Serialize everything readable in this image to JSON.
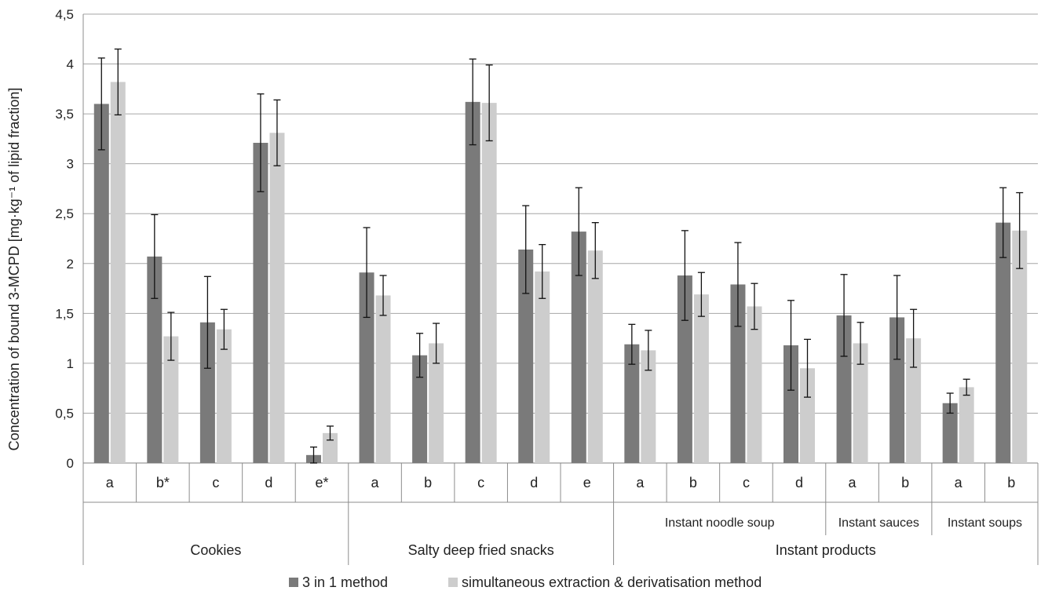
{
  "chart_data": {
    "type": "bar",
    "ylabel": "Concentration of bound 3-MCPD [mg·kg⁻¹ of lipid fraction]",
    "ylim": [
      0,
      4.5
    ],
    "yticks": [
      "0",
      "0,5",
      "1",
      "1,5",
      "2",
      "2,5",
      "3",
      "3,5",
      "4",
      "4,5"
    ],
    "grid": true,
    "legend_position": "bottom",
    "colors": {
      "series1": "#7a7a7a",
      "series2": "#cdcdcd",
      "grid": "#a6a6a6",
      "error": "#111111"
    },
    "categories": [
      "a",
      "b*",
      "c",
      "d",
      "e*",
      "a",
      "b",
      "c",
      "d",
      "e",
      "a",
      "b",
      "c",
      "d",
      "a",
      "b",
      "a",
      "b"
    ],
    "subgroups": [
      {
        "label": "Instant noodle soup",
        "start": 10,
        "end": 13
      },
      {
        "label": "Instant sauces",
        "start": 14,
        "end": 15
      },
      {
        "label": "Instant soups",
        "start": 16,
        "end": 17
      }
    ],
    "groups": [
      {
        "label": "Cookies",
        "start": 0,
        "end": 4
      },
      {
        "label": "Salty deep fried snacks",
        "start": 5,
        "end": 9
      },
      {
        "label": "Instant products",
        "start": 10,
        "end": 17
      }
    ],
    "series": [
      {
        "name": "3 in 1 method",
        "values": [
          3.6,
          2.07,
          1.41,
          3.21,
          0.08,
          1.91,
          1.08,
          3.62,
          2.14,
          2.32,
          1.19,
          1.88,
          1.79,
          1.18,
          1.48,
          1.46,
          0.6,
          2.41
        ],
        "errors": [
          0.46,
          0.42,
          0.46,
          0.49,
          0.08,
          0.45,
          0.22,
          0.43,
          0.44,
          0.44,
          0.2,
          0.45,
          0.42,
          0.45,
          0.41,
          0.42,
          0.1,
          0.35
        ]
      },
      {
        "name": "simultaneous extraction & derivatisation method",
        "values": [
          3.82,
          1.27,
          1.34,
          3.31,
          0.3,
          1.68,
          1.2,
          3.61,
          1.92,
          2.13,
          1.13,
          1.69,
          1.57,
          0.95,
          1.2,
          1.25,
          0.76,
          2.33
        ],
        "errors": [
          0.33,
          0.24,
          0.2,
          0.33,
          0.07,
          0.2,
          0.2,
          0.38,
          0.27,
          0.28,
          0.2,
          0.22,
          0.23,
          0.29,
          0.21,
          0.29,
          0.08,
          0.38
        ]
      }
    ]
  }
}
